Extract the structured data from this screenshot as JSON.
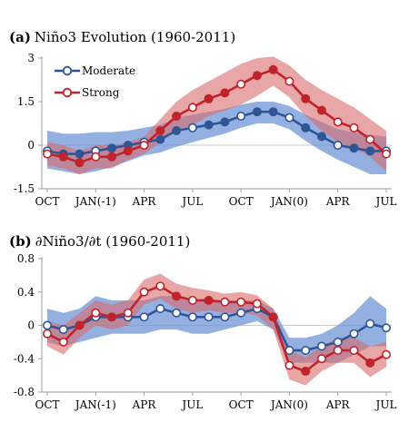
{
  "colors": {
    "moderate_line": "#2f5597",
    "moderate_band": "#6f95d6",
    "strong_line": "#c0232a",
    "strong_band": "#d96a6a",
    "axis": "#9e9e9e",
    "gridline": "#c8c8c8"
  },
  "chart_data": [
    {
      "panel": "a",
      "type": "line",
      "title_tag": "(a)",
      "title_rest": "Niño3 Evolution (1960-2011)",
      "xlabel": "",
      "ylabel": "",
      "x_ticks": [
        "OCT",
        "JAN(-1)",
        "APR",
        "JUL",
        "OCT",
        "JAN(0)",
        "APR",
        "JUL"
      ],
      "x": [
        "OCT",
        "NOV",
        "DEC",
        "JAN(-1)",
        "FEB",
        "MAR",
        "APR",
        "MAY",
        "JUN",
        "JUL",
        "AUG",
        "SEP",
        "OCT",
        "NOV",
        "DEC",
        "JAN(0)",
        "FEB",
        "MAR",
        "APR",
        "MAY",
        "JUN",
        "JUL"
      ],
      "ylim": [
        -1.5,
        3
      ],
      "y_ticks": [
        "-1.5",
        "0",
        "1.5",
        "3"
      ],
      "y_tick_values": [
        -1.5,
        0,
        1.5,
        3
      ],
      "zero_line": true,
      "legend": {
        "position": "top-left",
        "entries": [
          "Moderate",
          "Strong"
        ]
      },
      "series": [
        {
          "name": "Moderate",
          "values": [
            -0.2,
            -0.3,
            -0.3,
            -0.2,
            -0.1,
            0.0,
            0.1,
            0.2,
            0.5,
            0.6,
            0.7,
            0.8,
            1.0,
            1.15,
            1.15,
            0.95,
            0.6,
            0.3,
            0.0,
            -0.1,
            -0.2,
            -0.2
          ],
          "band_upper": [
            0.5,
            0.4,
            0.4,
            0.45,
            0.45,
            0.5,
            0.6,
            0.7,
            0.95,
            1.05,
            1.15,
            1.25,
            1.4,
            1.5,
            1.5,
            1.35,
            1.05,
            0.8,
            0.55,
            0.45,
            0.35,
            0.3
          ],
          "band_lower": [
            -0.8,
            -0.9,
            -1.0,
            -0.9,
            -0.75,
            -0.55,
            -0.35,
            -0.25,
            -0.05,
            0.1,
            0.25,
            0.4,
            0.6,
            0.75,
            0.75,
            0.55,
            0.15,
            -0.2,
            -0.5,
            -0.75,
            -1.0,
            -1.0
          ]
        },
        {
          "name": "Strong",
          "values": [
            -0.3,
            -0.4,
            -0.6,
            -0.4,
            -0.4,
            -0.2,
            0.0,
            0.5,
            1.0,
            1.3,
            1.6,
            1.8,
            2.1,
            2.4,
            2.6,
            2.2,
            1.6,
            1.2,
            0.8,
            0.6,
            0.2,
            -0.3
          ],
          "band_upper": [
            0.1,
            0.0,
            -0.2,
            0.0,
            0.0,
            0.1,
            0.3,
            0.9,
            1.5,
            1.9,
            2.2,
            2.5,
            2.8,
            3.0,
            3.05,
            2.75,
            2.25,
            1.9,
            1.6,
            1.3,
            0.9,
            0.5
          ],
          "band_lower": [
            -0.7,
            -0.8,
            -1.0,
            -0.8,
            -0.8,
            -0.5,
            -0.3,
            0.1,
            0.5,
            0.7,
            1.0,
            1.2,
            1.4,
            1.7,
            2.05,
            1.65,
            1.0,
            0.5,
            0.1,
            -0.1,
            -0.4,
            -0.9
          ]
        }
      ]
    },
    {
      "panel": "b",
      "type": "line",
      "title_tag": "(b)",
      "title_rest": "∂Niño3/∂t (1960-2011)",
      "xlabel": "",
      "ylabel": "",
      "x_ticks": [
        "OCT",
        "JAN(-1)",
        "APR",
        "JUL",
        "OCT",
        "JAN(0)",
        "APR",
        "JUL"
      ],
      "x": [
        "OCT",
        "NOV",
        "DEC",
        "JAN(-1)",
        "FEB",
        "MAR",
        "APR",
        "MAY",
        "JUN",
        "JUL",
        "AUG",
        "SEP",
        "OCT",
        "NOV",
        "DEC",
        "JAN(0)",
        "FEB",
        "MAR",
        "APR",
        "MAY",
        "JUN",
        "JUL"
      ],
      "ylim": [
        -0.8,
        0.8
      ],
      "y_ticks": [
        "-0.8",
        "-0.4",
        "0",
        "0.4",
        "0.8"
      ],
      "y_tick_values": [
        -0.8,
        -0.4,
        0,
        0.4,
        0.8
      ],
      "zero_line": true,
      "series": [
        {
          "name": "Moderate",
          "values": [
            0.0,
            -0.05,
            0.0,
            0.1,
            0.1,
            0.1,
            0.1,
            0.2,
            0.15,
            0.1,
            0.1,
            0.1,
            0.15,
            0.2,
            0.1,
            -0.3,
            -0.3,
            -0.25,
            -0.2,
            -0.1,
            0.02,
            -0.03
          ],
          "band_upper": [
            0.2,
            0.15,
            0.2,
            0.35,
            0.3,
            0.3,
            0.3,
            0.35,
            0.35,
            0.3,
            0.3,
            0.25,
            0.3,
            0.3,
            0.2,
            -0.15,
            -0.15,
            -0.1,
            0.0,
            0.15,
            0.35,
            0.2
          ],
          "band_lower": [
            -0.2,
            -0.25,
            -0.2,
            -0.15,
            -0.1,
            -0.1,
            -0.1,
            -0.05,
            -0.05,
            -0.1,
            -0.1,
            -0.05,
            0.0,
            0.05,
            -0.05,
            -0.45,
            -0.45,
            -0.45,
            -0.45,
            -0.35,
            -0.25,
            -0.25
          ]
        },
        {
          "name": "Strong",
          "values": [
            -0.1,
            -0.2,
            0.0,
            0.15,
            0.1,
            0.15,
            0.4,
            0.47,
            0.35,
            0.3,
            0.3,
            0.28,
            0.28,
            0.26,
            0.1,
            -0.48,
            -0.55,
            -0.4,
            -0.3,
            -0.3,
            -0.45,
            -0.35
          ],
          "band_upper": [
            0.05,
            0.0,
            0.15,
            0.3,
            0.25,
            0.3,
            0.55,
            0.62,
            0.5,
            0.45,
            0.42,
            0.38,
            0.4,
            0.36,
            0.2,
            -0.3,
            -0.38,
            -0.25,
            -0.15,
            -0.15,
            -0.25,
            -0.2
          ],
          "band_lower": [
            -0.25,
            -0.35,
            -0.15,
            0.0,
            -0.05,
            0.0,
            0.25,
            0.32,
            0.2,
            0.15,
            0.18,
            0.15,
            0.15,
            0.12,
            -0.05,
            -0.65,
            -0.72,
            -0.55,
            -0.45,
            -0.45,
            -0.62,
            -0.5
          ]
        }
      ]
    }
  ]
}
